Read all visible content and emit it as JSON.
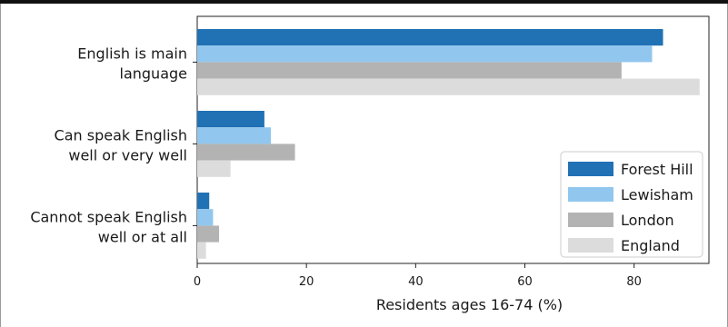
{
  "chart_data": {
    "type": "bar",
    "orientation": "horizontal",
    "categories": [
      [
        "English is main",
        "language"
      ],
      [
        "Can speak English",
        "well or very well"
      ],
      [
        "Cannot speak English",
        "well or at all"
      ]
    ],
    "series": [
      {
        "name": "Forest Hill",
        "color": "#2171b5",
        "values": [
          85.3,
          12.3,
          2.2
        ]
      },
      {
        "name": "Lewisham",
        "color": "#91c7ee",
        "values": [
          83.3,
          13.5,
          2.9
        ]
      },
      {
        "name": "London",
        "color": "#b3b3b3",
        "values": [
          77.7,
          17.9,
          4.0
        ]
      },
      {
        "name": "England",
        "color": "#dcdcdc",
        "values": [
          92.0,
          6.1,
          1.6
        ]
      }
    ],
    "xlabel": "Residents ages 16-74 (%)",
    "ylabel": "",
    "xlim": [
      0,
      93.7
    ],
    "xticks": [
      0,
      20,
      40,
      60,
      80
    ],
    "grid": false,
    "legend_position": "lower-right"
  }
}
